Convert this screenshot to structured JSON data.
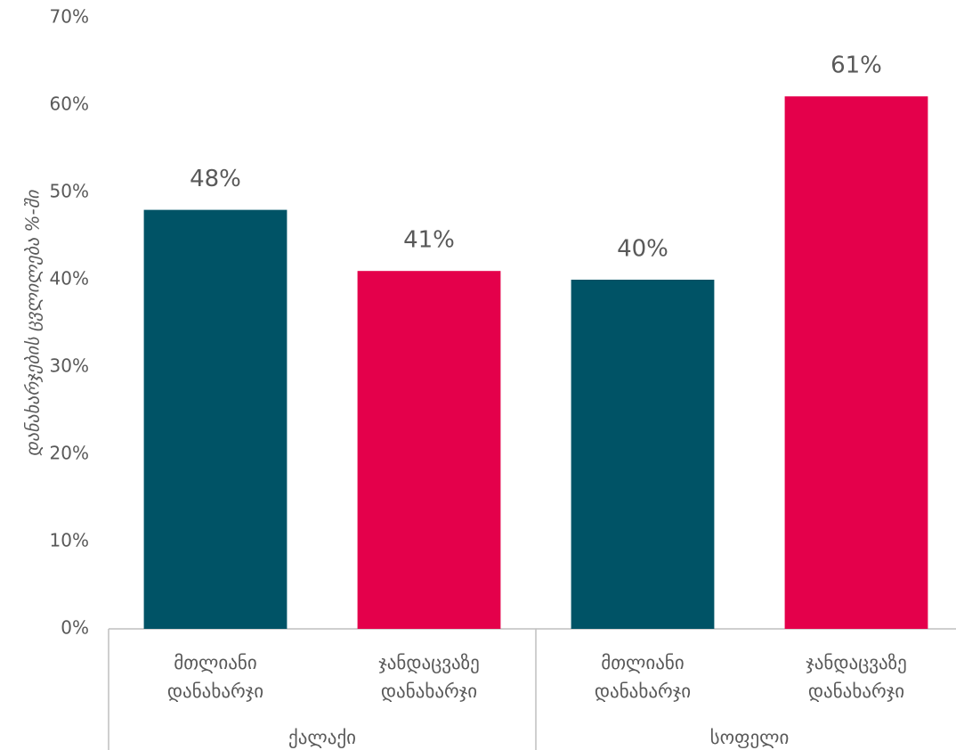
{
  "chart_data": {
    "type": "bar",
    "y_axis_label": "დანახარჯების ცვლილება %-ში",
    "categories": [
      [
        "მთლიანი",
        "დანახარჯი"
      ],
      [
        "ჯანდაცვაზე",
        "დანახარჯი"
      ],
      [
        "მთლიანი",
        "დანახარჯი"
      ],
      [
        "ჯანდაცვაზე",
        "დანახარჯი"
      ]
    ],
    "groups": [
      "ქალაქი",
      "სოფელი"
    ],
    "values": [
      48,
      41,
      40,
      61
    ],
    "value_labels": [
      "48%",
      "41%",
      "40%",
      "61%"
    ],
    "colors": [
      "#005366",
      "#e4004b",
      "#005366",
      "#e4004b"
    ],
    "ylim": [
      0,
      70
    ],
    "yticks": [
      {
        "value": 0,
        "label": "0%"
      },
      {
        "value": 10,
        "label": "10%"
      },
      {
        "value": 20,
        "label": "20%"
      },
      {
        "value": 30,
        "label": "30%"
      },
      {
        "value": 40,
        "label": "40%"
      },
      {
        "value": 50,
        "label": "50%"
      },
      {
        "value": 60,
        "label": "60%"
      },
      {
        "value": 70,
        "label": "70%"
      }
    ],
    "grid": false
  }
}
